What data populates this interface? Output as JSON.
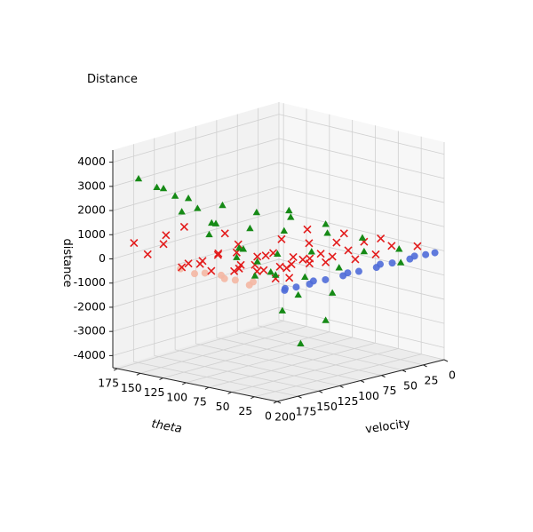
{
  "chart_data": {
    "type": "scatter",
    "title": "Distance",
    "xlabel": "velocity",
    "ylabel": "theta",
    "zlabel": "distance",
    "xlim": [
      0,
      200
    ],
    "ylim": [
      0,
      180
    ],
    "zlim": [
      -4500,
      4500
    ],
    "x_ticks": [
      "0",
      "25",
      "50",
      "75",
      "100",
      "125",
      "150",
      "175",
      "200"
    ],
    "y_ticks": [
      "0",
      "25",
      "50",
      "75",
      "100",
      "125",
      "150",
      "175"
    ],
    "z_ticks": [
      "-4000",
      "-3000",
      "-2000",
      "-1000",
      "0",
      "1000",
      "2000",
      "3000",
      "4000"
    ],
    "grid": true,
    "series": [
      {
        "marker": "circle",
        "color": "#4f6bd8",
        "points": [
          [
            190,
            1,
            0
          ],
          [
            175,
            2,
            0
          ],
          [
            160,
            1,
            0
          ],
          [
            140,
            2,
            0
          ],
          [
            120,
            1,
            0
          ],
          [
            100,
            2,
            0
          ],
          [
            80,
            1,
            0
          ],
          [
            60,
            2,
            0
          ],
          [
            40,
            1,
            0
          ],
          [
            20,
            2,
            0
          ],
          [
            10,
            1,
            0
          ],
          [
            185,
            5,
            0
          ],
          [
            150,
            6,
            0
          ],
          [
            110,
            5,
            0
          ],
          [
            70,
            6,
            0
          ],
          [
            30,
            5,
            0
          ]
        ]
      },
      {
        "marker": "circle",
        "color": "#f4b7a3",
        "points": [
          [
            195,
            35,
            0
          ],
          [
            190,
            55,
            0
          ],
          [
            185,
            75,
            0
          ],
          [
            195,
            95,
            0
          ],
          [
            190,
            115,
            0
          ],
          [
            185,
            40,
            0
          ],
          [
            192,
            65,
            0
          ],
          [
            188,
            90,
            0
          ]
        ]
      },
      {
        "marker": "x",
        "color": "#e31b1b",
        "points": [
          [
            180,
            5,
            400
          ],
          [
            180,
            20,
            250
          ],
          [
            180,
            40,
            1000
          ],
          [
            180,
            60,
            350
          ],
          [
            175,
            80,
            1600
          ],
          [
            180,
            100,
            350
          ],
          [
            180,
            120,
            1600
          ],
          [
            180,
            140,
            1100
          ],
          [
            180,
            160,
            150
          ],
          [
            180,
            175,
            500
          ],
          [
            150,
            10,
            900
          ],
          [
            150,
            30,
            500
          ],
          [
            150,
            50,
            800
          ],
          [
            150,
            70,
            150
          ],
          [
            150,
            90,
            500
          ],
          [
            150,
            110,
            300
          ],
          [
            150,
            130,
            -300
          ],
          [
            150,
            150,
            -600
          ],
          [
            150,
            170,
            200
          ],
          [
            120,
            20,
            400
          ],
          [
            120,
            45,
            300
          ],
          [
            120,
            70,
            -200
          ],
          [
            120,
            95,
            -600
          ],
          [
            120,
            120,
            -800
          ],
          [
            120,
            145,
            -1000
          ],
          [
            120,
            170,
            -900
          ],
          [
            90,
            15,
            300
          ],
          [
            90,
            40,
            200
          ],
          [
            90,
            65,
            -300
          ],
          [
            90,
            90,
            -700
          ],
          [
            90,
            115,
            -1000
          ],
          [
            90,
            140,
            -1000
          ],
          [
            90,
            165,
            -800
          ],
          [
            60,
            20,
            200
          ],
          [
            60,
            50,
            100
          ],
          [
            60,
            80,
            -300
          ],
          [
            60,
            110,
            -700
          ],
          [
            60,
            140,
            -900
          ],
          [
            60,
            170,
            -700
          ],
          [
            30,
            30,
            200
          ],
          [
            30,
            60,
            100
          ],
          [
            30,
            90,
            -200
          ],
          [
            30,
            120,
            -500
          ],
          [
            30,
            150,
            -600
          ],
          [
            10,
            20,
            100
          ],
          [
            10,
            60,
            50
          ],
          [
            10,
            100,
            -100
          ],
          [
            10,
            140,
            -300
          ]
        ]
      },
      {
        "marker": "triangle",
        "color": "#168a16",
        "points": [
          [
            180,
            150,
            3000
          ],
          [
            180,
            170,
            3200
          ],
          [
            180,
            130,
            2800
          ],
          [
            175,
            110,
            2400
          ],
          [
            180,
            90,
            2000
          ],
          [
            180,
            60,
            1200
          ],
          [
            180,
            40,
            800
          ],
          [
            180,
            20,
            400
          ],
          [
            150,
            170,
            2500
          ],
          [
            150,
            150,
            1700
          ],
          [
            150,
            120,
            1000
          ],
          [
            150,
            90,
            300
          ],
          [
            150,
            70,
            -300
          ],
          [
            150,
            40,
            -1500
          ],
          [
            150,
            20,
            -2700
          ],
          [
            120,
            170,
            1800
          ],
          [
            120,
            140,
            1000
          ],
          [
            120,
            110,
            200
          ],
          [
            120,
            80,
            -500
          ],
          [
            120,
            50,
            -1200
          ],
          [
            120,
            20,
            -2000
          ],
          [
            90,
            160,
            1300
          ],
          [
            90,
            130,
            600
          ],
          [
            90,
            100,
            -200
          ],
          [
            90,
            70,
            -900
          ],
          [
            90,
            40,
            -1300
          ],
          [
            60,
            150,
            800
          ],
          [
            60,
            120,
            300
          ],
          [
            60,
            90,
            -300
          ],
          [
            60,
            60,
            -700
          ],
          [
            30,
            140,
            400
          ],
          [
            30,
            100,
            100
          ],
          [
            30,
            60,
            -300
          ],
          [
            30,
            20,
            -400
          ],
          [
            10,
            160,
            300
          ],
          [
            10,
            120,
            100
          ],
          [
            10,
            80,
            -100
          ],
          [
            10,
            40,
            -200
          ]
        ]
      }
    ]
  }
}
